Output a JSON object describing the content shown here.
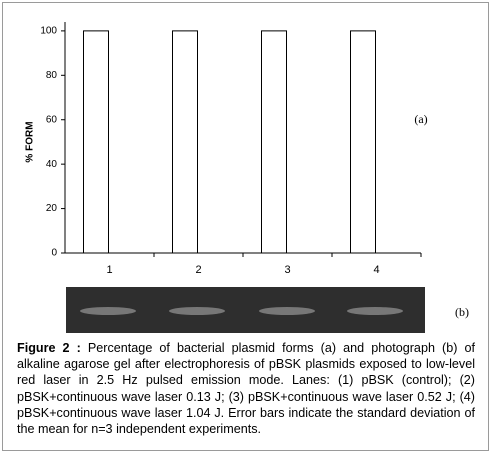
{
  "chart_data": {
    "type": "bar",
    "y_label": "% FORM",
    "panel_label": "(a)",
    "categories": [
      "1",
      "2",
      "3",
      "4"
    ],
    "values": [
      100,
      100,
      100,
      100
    ],
    "color": "#ffffff",
    "edge_color": "#000000",
    "ylim": [
      0,
      104
    ],
    "yticks": [
      0,
      20,
      40,
      60,
      80,
      100
    ],
    "grid": false
  },
  "figure": {
    "gel_label": "(b)",
    "caption_label": "Figure 2 :",
    "caption": "Percentage of bacterial plasmid forms (a) and photograph (b) of alkaline agarose gel after electrophoresis of pBSK plasmids exposed to low-level red laser in 2.5 Hz pulsed emission mode. Lanes: (1) pBSK (control); (2) pBSK+continuous wave laser 0.13 J; (3) pBSK+continuous wave laser 0.52 J; (4) pBSK+continuous wave laser 1.04 J. Error bars indicate the standard deviation of the mean for n=3 independent experiments."
  }
}
